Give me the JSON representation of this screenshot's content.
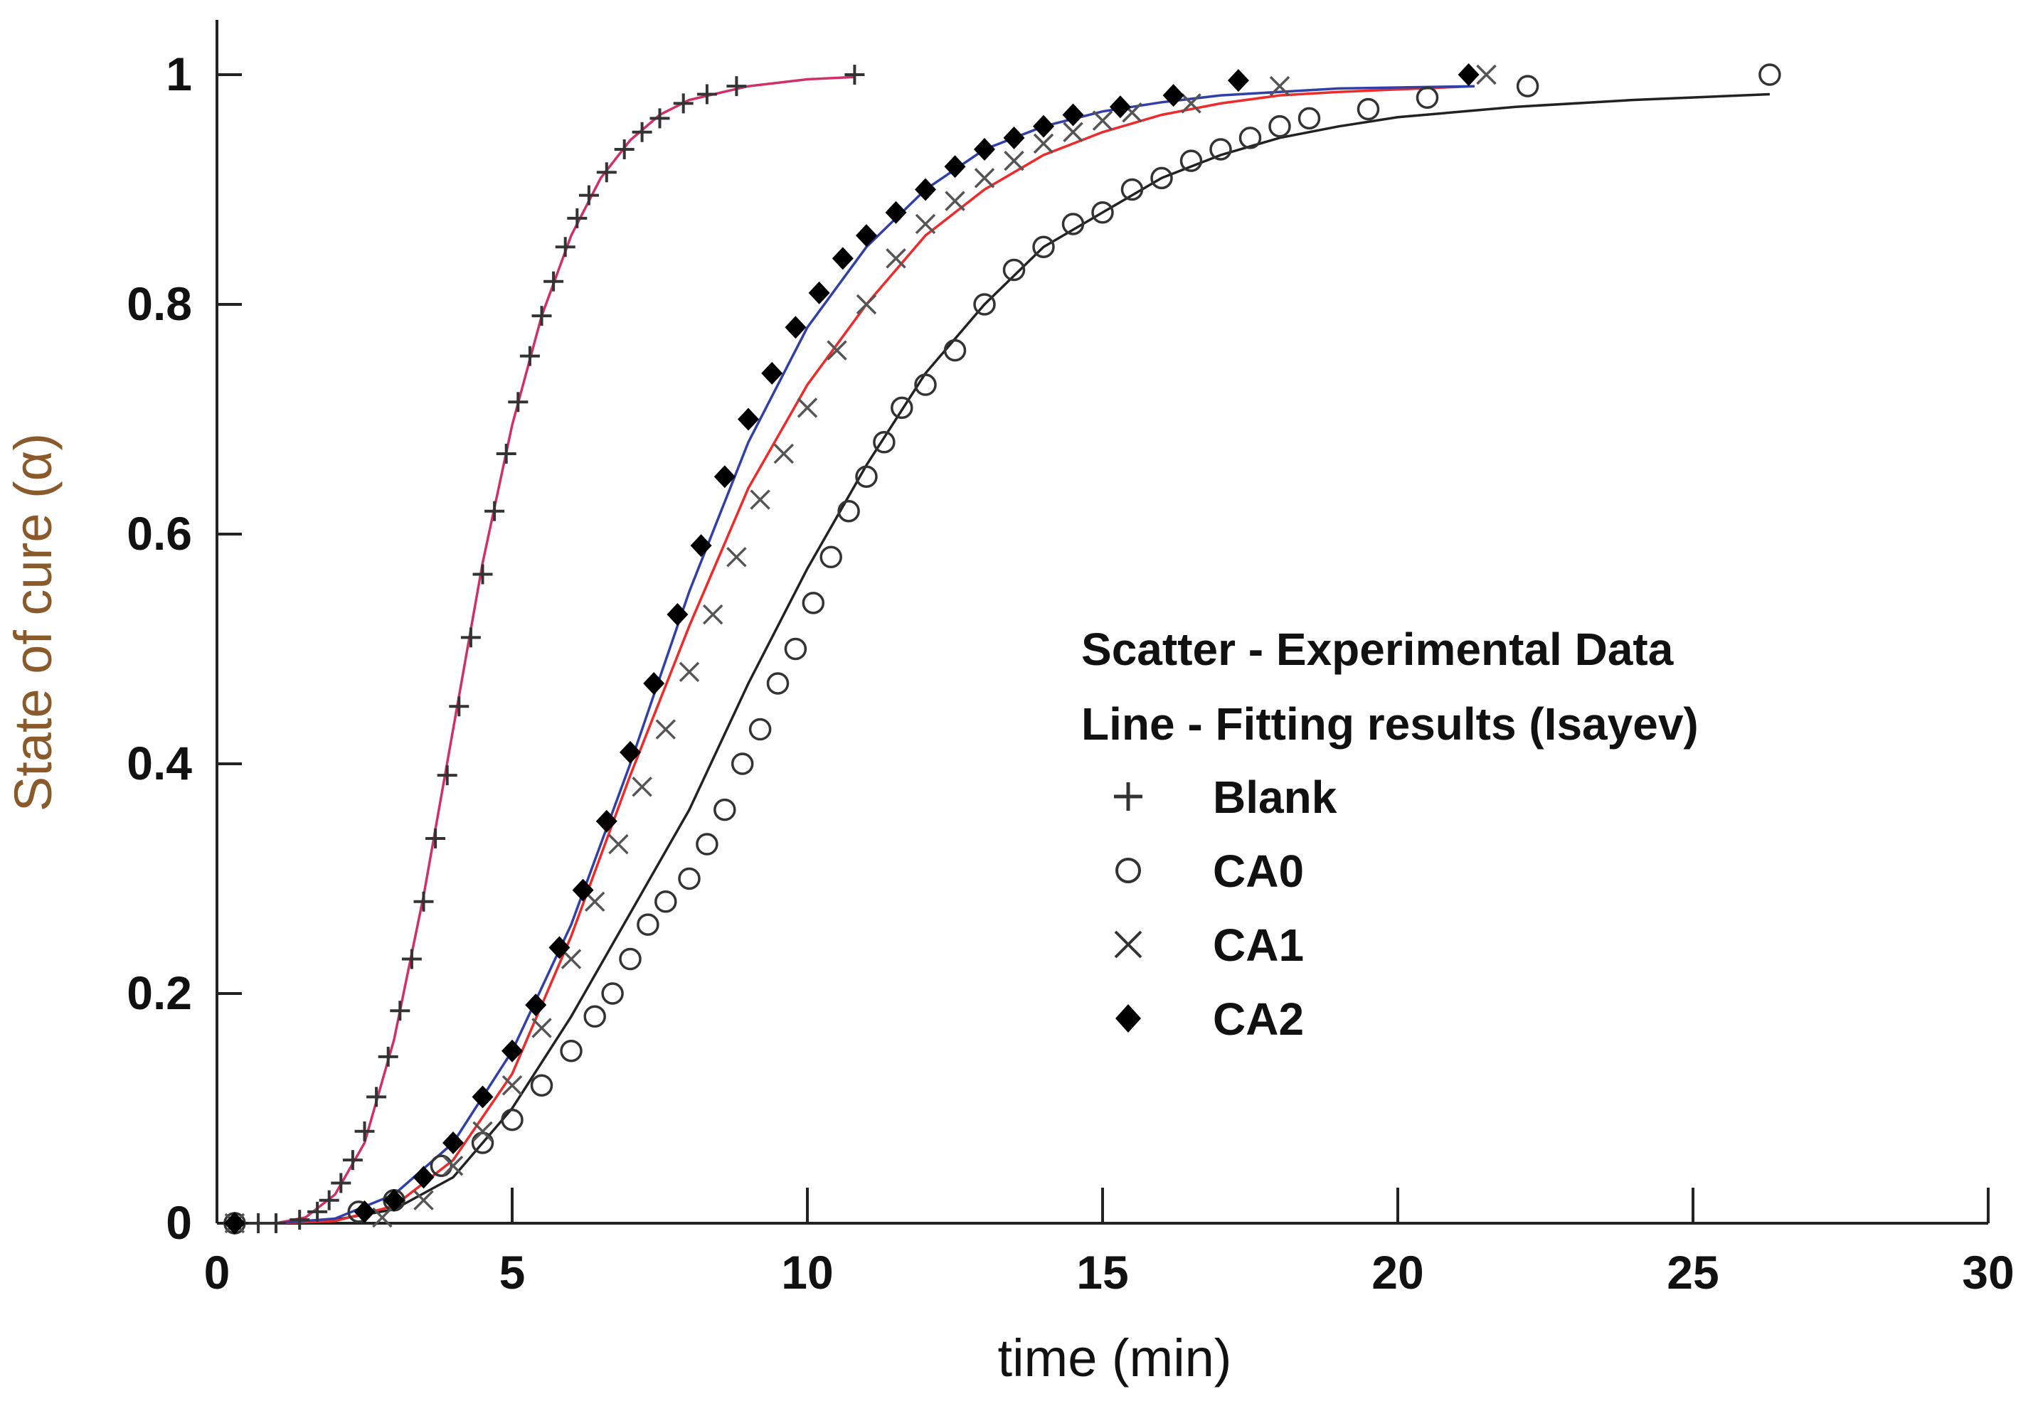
{
  "chart_data": {
    "type": "scatter",
    "title": "",
    "xlabel": "time (min)",
    "ylabel": "State of cure (α)",
    "xlim": [
      0,
      30
    ],
    "ylim": [
      0,
      1.05
    ],
    "xticks": [
      0,
      5,
      10,
      15,
      20,
      25,
      30
    ],
    "yticks": [
      0,
      0.2,
      0.4,
      0.6,
      0.8,
      1
    ],
    "xtick_labels": [
      "0",
      "5",
      "10",
      "15",
      "20",
      "25",
      "30"
    ],
    "ytick_labels": [
      "0",
      "0.2",
      "0.4",
      "0.6",
      "0.8",
      "1"
    ],
    "legend": {
      "position": "center-right",
      "header_scatter": "Scatter - Experimental Data",
      "header_line": "Line - Fitting results (Isayev)",
      "items": [
        {
          "marker": "plus",
          "label": "Blank"
        },
        {
          "marker": "circle",
          "label": "CA0"
        },
        {
          "marker": "cross",
          "label": "CA1"
        },
        {
          "marker": "diamond",
          "label": "CA2"
        }
      ]
    },
    "series": [
      {
        "name": "Blank",
        "marker": "plus",
        "fit_color": "#d0306a",
        "points": [
          [
            0.3,
            0.0
          ],
          [
            0.7,
            0.0
          ],
          [
            1.0,
            0.0
          ],
          [
            1.4,
            0.003
          ],
          [
            1.7,
            0.01
          ],
          [
            1.9,
            0.02
          ],
          [
            2.1,
            0.035
          ],
          [
            2.3,
            0.055
          ],
          [
            2.5,
            0.08
          ],
          [
            2.7,
            0.11
          ],
          [
            2.9,
            0.145
          ],
          [
            3.1,
            0.185
          ],
          [
            3.3,
            0.23
          ],
          [
            3.5,
            0.28
          ],
          [
            3.7,
            0.335
          ],
          [
            3.9,
            0.39
          ],
          [
            4.1,
            0.45
          ],
          [
            4.3,
            0.51
          ],
          [
            4.5,
            0.565
          ],
          [
            4.7,
            0.62
          ],
          [
            4.9,
            0.67
          ],
          [
            5.1,
            0.715
          ],
          [
            5.3,
            0.755
          ],
          [
            5.5,
            0.79
          ],
          [
            5.7,
            0.82
          ],
          [
            5.9,
            0.85
          ],
          [
            6.1,
            0.875
          ],
          [
            6.3,
            0.895
          ],
          [
            6.6,
            0.915
          ],
          [
            6.9,
            0.935
          ],
          [
            7.2,
            0.95
          ],
          [
            7.5,
            0.962
          ],
          [
            7.9,
            0.975
          ],
          [
            8.3,
            0.983
          ],
          [
            8.8,
            0.99
          ],
          [
            10.8,
            1.0
          ]
        ],
        "fit": [
          [
            1.0,
            0.0
          ],
          [
            1.5,
            0.005
          ],
          [
            2.0,
            0.025
          ],
          [
            2.5,
            0.07
          ],
          [
            3.0,
            0.16
          ],
          [
            3.5,
            0.285
          ],
          [
            4.0,
            0.43
          ],
          [
            4.5,
            0.575
          ],
          [
            5.0,
            0.695
          ],
          [
            5.5,
            0.79
          ],
          [
            6.0,
            0.86
          ],
          [
            6.5,
            0.91
          ],
          [
            7.0,
            0.943
          ],
          [
            7.5,
            0.965
          ],
          [
            8.0,
            0.978
          ],
          [
            9.0,
            0.99
          ],
          [
            10.0,
            0.996
          ],
          [
            10.8,
            0.998
          ]
        ]
      },
      {
        "name": "CA0",
        "marker": "circle",
        "fit_color": "#222222",
        "points": [
          [
            0.3,
            0.0
          ],
          [
            2.4,
            0.01
          ],
          [
            3.0,
            0.02
          ],
          [
            3.8,
            0.05
          ],
          [
            4.5,
            0.07
          ],
          [
            5.0,
            0.09
          ],
          [
            5.5,
            0.12
          ],
          [
            6.0,
            0.15
          ],
          [
            6.4,
            0.18
          ],
          [
            6.7,
            0.2
          ],
          [
            7.0,
            0.23
          ],
          [
            7.3,
            0.26
          ],
          [
            7.6,
            0.28
          ],
          [
            8.0,
            0.3
          ],
          [
            8.3,
            0.33
          ],
          [
            8.6,
            0.36
          ],
          [
            8.9,
            0.4
          ],
          [
            9.2,
            0.43
          ],
          [
            9.5,
            0.47
          ],
          [
            9.8,
            0.5
          ],
          [
            10.1,
            0.54
          ],
          [
            10.4,
            0.58
          ],
          [
            10.7,
            0.62
          ],
          [
            11.0,
            0.65
          ],
          [
            11.3,
            0.68
          ],
          [
            11.6,
            0.71
          ],
          [
            12.0,
            0.73
          ],
          [
            12.5,
            0.76
          ],
          [
            13.0,
            0.8
          ],
          [
            13.5,
            0.83
          ],
          [
            14.0,
            0.85
          ],
          [
            14.5,
            0.87
          ],
          [
            15.0,
            0.88
          ],
          [
            15.5,
            0.9
          ],
          [
            16.0,
            0.91
          ],
          [
            16.5,
            0.925
          ],
          [
            17.0,
            0.935
          ],
          [
            17.5,
            0.945
          ],
          [
            18.0,
            0.955
          ],
          [
            18.5,
            0.962
          ],
          [
            19.5,
            0.97
          ],
          [
            20.5,
            0.98
          ],
          [
            22.2,
            0.99
          ],
          [
            26.3,
            1.0
          ]
        ],
        "fit": [
          [
            1.0,
            0.0
          ],
          [
            2.0,
            0.003
          ],
          [
            3.0,
            0.012
          ],
          [
            4.0,
            0.04
          ],
          [
            5.0,
            0.1
          ],
          [
            6.0,
            0.18
          ],
          [
            7.0,
            0.27
          ],
          [
            8.0,
            0.36
          ],
          [
            9.0,
            0.47
          ],
          [
            10.0,
            0.57
          ],
          [
            11.0,
            0.66
          ],
          [
            12.0,
            0.74
          ],
          [
            13.0,
            0.8
          ],
          [
            14.0,
            0.85
          ],
          [
            15.0,
            0.88
          ],
          [
            16.0,
            0.91
          ],
          [
            17.0,
            0.93
          ],
          [
            18.0,
            0.945
          ],
          [
            19.0,
            0.955
          ],
          [
            20.0,
            0.963
          ],
          [
            22.0,
            0.972
          ],
          [
            24.0,
            0.978
          ],
          [
            26.3,
            0.983
          ]
        ]
      },
      {
        "name": "CA1",
        "marker": "cross",
        "fit_color": "#ee2a2a",
        "points": [
          [
            0.3,
            0.0
          ],
          [
            2.8,
            0.005
          ],
          [
            3.5,
            0.02
          ],
          [
            4.0,
            0.05
          ],
          [
            4.5,
            0.08
          ],
          [
            5.0,
            0.12
          ],
          [
            5.5,
            0.17
          ],
          [
            6.0,
            0.23
          ],
          [
            6.4,
            0.28
          ],
          [
            6.8,
            0.33
          ],
          [
            7.2,
            0.38
          ],
          [
            7.6,
            0.43
          ],
          [
            8.0,
            0.48
          ],
          [
            8.4,
            0.53
          ],
          [
            8.8,
            0.58
          ],
          [
            9.2,
            0.63
          ],
          [
            9.6,
            0.67
          ],
          [
            10.0,
            0.71
          ],
          [
            10.5,
            0.76
          ],
          [
            11.0,
            0.8
          ],
          [
            11.5,
            0.84
          ],
          [
            12.0,
            0.87
          ],
          [
            12.5,
            0.89
          ],
          [
            13.0,
            0.91
          ],
          [
            13.5,
            0.925
          ],
          [
            14.0,
            0.94
          ],
          [
            14.5,
            0.95
          ],
          [
            15.0,
            0.96
          ],
          [
            15.5,
            0.967
          ],
          [
            16.5,
            0.975
          ],
          [
            18.0,
            0.99
          ],
          [
            21.5,
            1.0
          ]
        ],
        "fit": [
          [
            1.0,
            0.0
          ],
          [
            2.0,
            0.002
          ],
          [
            3.0,
            0.015
          ],
          [
            4.0,
            0.055
          ],
          [
            5.0,
            0.13
          ],
          [
            6.0,
            0.25
          ],
          [
            7.0,
            0.39
          ],
          [
            8.0,
            0.52
          ],
          [
            9.0,
            0.64
          ],
          [
            10.0,
            0.73
          ],
          [
            11.0,
            0.8
          ],
          [
            12.0,
            0.86
          ],
          [
            13.0,
            0.9
          ],
          [
            14.0,
            0.93
          ],
          [
            15.0,
            0.95
          ],
          [
            16.0,
            0.965
          ],
          [
            17.0,
            0.975
          ],
          [
            18.0,
            0.982
          ],
          [
            19.0,
            0.985
          ],
          [
            21.3,
            0.99
          ]
        ]
      },
      {
        "name": "CA2",
        "marker": "diamond",
        "fit_color": "#3040a8",
        "points": [
          [
            0.3,
            0.0
          ],
          [
            2.5,
            0.01
          ],
          [
            3.0,
            0.02
          ],
          [
            3.5,
            0.04
          ],
          [
            4.0,
            0.07
          ],
          [
            4.5,
            0.11
          ],
          [
            5.0,
            0.15
          ],
          [
            5.4,
            0.19
          ],
          [
            5.8,
            0.24
          ],
          [
            6.2,
            0.29
          ],
          [
            6.6,
            0.35
          ],
          [
            7.0,
            0.41
          ],
          [
            7.4,
            0.47
          ],
          [
            7.8,
            0.53
          ],
          [
            8.2,
            0.59
          ],
          [
            8.6,
            0.65
          ],
          [
            9.0,
            0.7
          ],
          [
            9.4,
            0.74
          ],
          [
            9.8,
            0.78
          ],
          [
            10.2,
            0.81
          ],
          [
            10.6,
            0.84
          ],
          [
            11.0,
            0.86
          ],
          [
            11.5,
            0.88
          ],
          [
            12.0,
            0.9
          ],
          [
            12.5,
            0.92
          ],
          [
            13.0,
            0.935
          ],
          [
            13.5,
            0.945
          ],
          [
            14.0,
            0.955
          ],
          [
            14.5,
            0.965
          ],
          [
            15.3,
            0.972
          ],
          [
            16.2,
            0.982
          ],
          [
            17.3,
            0.995
          ],
          [
            21.2,
            1.0
          ]
        ],
        "fit": [
          [
            1.0,
            0.0
          ],
          [
            2.0,
            0.004
          ],
          [
            3.0,
            0.025
          ],
          [
            4.0,
            0.07
          ],
          [
            5.0,
            0.15
          ],
          [
            6.0,
            0.26
          ],
          [
            7.0,
            0.4
          ],
          [
            8.0,
            0.55
          ],
          [
            9.0,
            0.68
          ],
          [
            10.0,
            0.78
          ],
          [
            11.0,
            0.85
          ],
          [
            12.0,
            0.9
          ],
          [
            13.0,
            0.935
          ],
          [
            14.0,
            0.955
          ],
          [
            15.0,
            0.968
          ],
          [
            16.0,
            0.976
          ],
          [
            17.0,
            0.982
          ],
          [
            18.0,
            0.985
          ],
          [
            19.0,
            0.988
          ],
          [
            21.3,
            0.99
          ]
        ]
      }
    ]
  }
}
